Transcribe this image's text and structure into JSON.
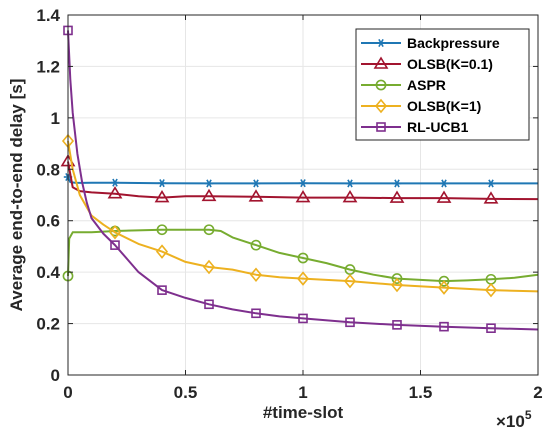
{
  "chart_data": {
    "type": "line",
    "title": "",
    "xlabel": "#time-slot",
    "ylabel": "Average end-to-end delay [s]",
    "x_multiplier_label": "×10",
    "x_multiplier_exponent": "5",
    "xlim": [
      0,
      2
    ],
    "ylim": [
      0,
      1.4
    ],
    "xticks": [
      0,
      0.5,
      1,
      1.5,
      2
    ],
    "xtick_labels": [
      "0",
      "0.5",
      "1",
      "1.5",
      "2"
    ],
    "yticks": [
      0,
      0.2,
      0.4,
      0.6,
      0.8,
      1,
      1.2,
      1.4
    ],
    "ytick_labels": [
      "0",
      "0.2",
      "0.4",
      "0.6",
      "0.8",
      "1",
      "1.2",
      "1.4"
    ],
    "grid": true,
    "legend_position": "top-right",
    "series": [
      {
        "name": "Backpressure",
        "color": "#1f77b4",
        "marker": "asterisk",
        "line": [
          [
            0,
            0.77
          ],
          [
            0.01,
            0.75
          ],
          [
            0.03,
            0.748
          ],
          [
            0.06,
            0.747
          ],
          [
            0.1,
            0.748
          ],
          [
            0.2,
            0.748
          ],
          [
            0.4,
            0.746
          ],
          [
            0.6,
            0.745
          ],
          [
            0.8,
            0.745
          ],
          [
            1.0,
            0.746
          ],
          [
            1.2,
            0.745
          ],
          [
            1.4,
            0.745
          ],
          [
            1.6,
            0.745
          ],
          [
            1.8,
            0.745
          ],
          [
            2.0,
            0.745
          ]
        ],
        "markers": [
          [
            0,
            0.77
          ],
          [
            0.2,
            0.748
          ],
          [
            0.4,
            0.746
          ],
          [
            0.6,
            0.745
          ],
          [
            0.8,
            0.745
          ],
          [
            1.0,
            0.746
          ],
          [
            1.2,
            0.745
          ],
          [
            1.4,
            0.745
          ],
          [
            1.6,
            0.745
          ],
          [
            1.8,
            0.745
          ]
        ]
      },
      {
        "name": "OLSB(K=0.1)",
        "color": "#a2142f",
        "marker": "triangle",
        "line": [
          [
            0,
            0.83
          ],
          [
            0.02,
            0.73
          ],
          [
            0.05,
            0.715
          ],
          [
            0.1,
            0.71
          ],
          [
            0.2,
            0.705
          ],
          [
            0.3,
            0.695
          ],
          [
            0.4,
            0.69
          ],
          [
            0.5,
            0.695
          ],
          [
            0.6,
            0.695
          ],
          [
            0.8,
            0.693
          ],
          [
            1.0,
            0.69
          ],
          [
            1.2,
            0.69
          ],
          [
            1.4,
            0.688
          ],
          [
            1.6,
            0.688
          ],
          [
            1.8,
            0.685
          ],
          [
            2.0,
            0.684
          ]
        ],
        "markers": [
          [
            0,
            0.83
          ],
          [
            0.2,
            0.705
          ],
          [
            0.4,
            0.69
          ],
          [
            0.6,
            0.695
          ],
          [
            0.8,
            0.693
          ],
          [
            1.0,
            0.69
          ],
          [
            1.2,
            0.69
          ],
          [
            1.4,
            0.688
          ],
          [
            1.6,
            0.688
          ],
          [
            1.8,
            0.685
          ]
        ]
      },
      {
        "name": "ASPR",
        "color": "#77ac30",
        "marker": "circle",
        "line": [
          [
            0,
            0.385
          ],
          [
            0.005,
            0.53
          ],
          [
            0.02,
            0.555
          ],
          [
            0.1,
            0.555
          ],
          [
            0.2,
            0.56
          ],
          [
            0.4,
            0.565
          ],
          [
            0.6,
            0.565
          ],
          [
            0.65,
            0.56
          ],
          [
            0.7,
            0.535
          ],
          [
            0.8,
            0.505
          ],
          [
            0.9,
            0.475
          ],
          [
            1.0,
            0.455
          ],
          [
            1.1,
            0.435
          ],
          [
            1.2,
            0.41
          ],
          [
            1.3,
            0.39
          ],
          [
            1.4,
            0.375
          ],
          [
            1.5,
            0.37
          ],
          [
            1.6,
            0.365
          ],
          [
            1.7,
            0.368
          ],
          [
            1.8,
            0.372
          ],
          [
            1.9,
            0.378
          ],
          [
            2.0,
            0.39
          ]
        ],
        "markers": [
          [
            0,
            0.385
          ],
          [
            0.2,
            0.56
          ],
          [
            0.4,
            0.565
          ],
          [
            0.6,
            0.565
          ],
          [
            0.8,
            0.505
          ],
          [
            1.0,
            0.455
          ],
          [
            1.2,
            0.41
          ],
          [
            1.4,
            0.375
          ],
          [
            1.6,
            0.365
          ],
          [
            1.8,
            0.372
          ]
        ]
      },
      {
        "name": "OLSB(K=1)",
        "color": "#edb120",
        "marker": "diamond",
        "line": [
          [
            0,
            0.91
          ],
          [
            0.02,
            0.8
          ],
          [
            0.05,
            0.7
          ],
          [
            0.1,
            0.62
          ],
          [
            0.15,
            0.585
          ],
          [
            0.2,
            0.555
          ],
          [
            0.3,
            0.51
          ],
          [
            0.4,
            0.48
          ],
          [
            0.5,
            0.44
          ],
          [
            0.6,
            0.42
          ],
          [
            0.7,
            0.41
          ],
          [
            0.8,
            0.39
          ],
          [
            0.9,
            0.38
          ],
          [
            1.0,
            0.375
          ],
          [
            1.2,
            0.365
          ],
          [
            1.4,
            0.35
          ],
          [
            1.6,
            0.34
          ],
          [
            1.8,
            0.33
          ],
          [
            2.0,
            0.325
          ]
        ],
        "markers": [
          [
            0,
            0.91
          ],
          [
            0.2,
            0.555
          ],
          [
            0.4,
            0.48
          ],
          [
            0.6,
            0.42
          ],
          [
            0.8,
            0.39
          ],
          [
            1.0,
            0.375
          ],
          [
            1.2,
            0.365
          ],
          [
            1.4,
            0.35
          ],
          [
            1.6,
            0.34
          ],
          [
            1.8,
            0.33
          ]
        ]
      },
      {
        "name": "RL-UCB1",
        "color": "#7e2f8e",
        "marker": "square",
        "line": [
          [
            0,
            1.34
          ],
          [
            0.01,
            1.15
          ],
          [
            0.02,
            1.02
          ],
          [
            0.04,
            0.86
          ],
          [
            0.06,
            0.75
          ],
          [
            0.08,
            0.67
          ],
          [
            0.1,
            0.61
          ],
          [
            0.15,
            0.55
          ],
          [
            0.2,
            0.505
          ],
          [
            0.3,
            0.4
          ],
          [
            0.4,
            0.33
          ],
          [
            0.5,
            0.3
          ],
          [
            0.6,
            0.275
          ],
          [
            0.7,
            0.255
          ],
          [
            0.8,
            0.24
          ],
          [
            0.9,
            0.228
          ],
          [
            1.0,
            0.22
          ],
          [
            1.2,
            0.205
          ],
          [
            1.4,
            0.195
          ],
          [
            1.6,
            0.188
          ],
          [
            1.8,
            0.182
          ],
          [
            2.0,
            0.177
          ]
        ],
        "markers": [
          [
            0,
            1.34
          ],
          [
            0.2,
            0.505
          ],
          [
            0.4,
            0.33
          ],
          [
            0.6,
            0.275
          ],
          [
            0.8,
            0.24
          ],
          [
            1.0,
            0.22
          ],
          [
            1.2,
            0.205
          ],
          [
            1.4,
            0.195
          ],
          [
            1.6,
            0.188
          ],
          [
            1.8,
            0.182
          ]
        ]
      }
    ]
  }
}
